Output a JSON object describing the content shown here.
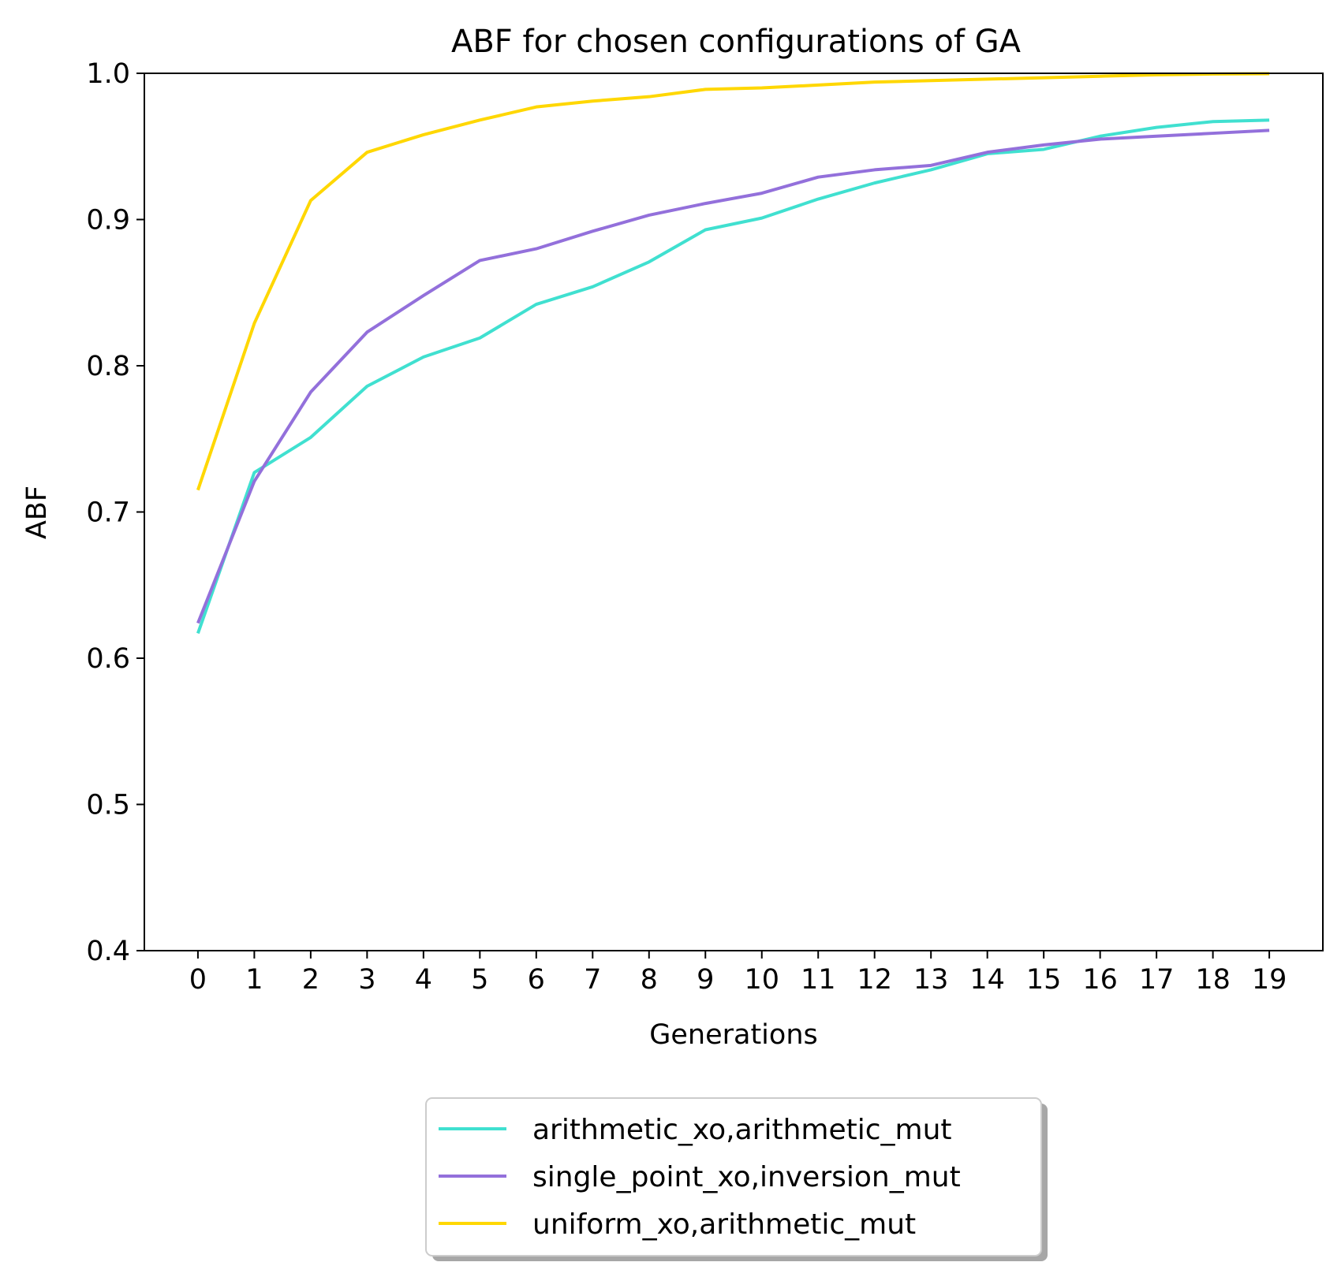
{
  "chart_data": {
    "type": "line",
    "title": "ABF for chosen configurations of GA",
    "xlabel": "Generations",
    "ylabel": "ABF",
    "xlim": [
      -0.95,
      19.95
    ],
    "ylim": [
      0.4,
      1.0
    ],
    "x": [
      0,
      1,
      2,
      3,
      4,
      5,
      6,
      7,
      8,
      9,
      10,
      11,
      12,
      13,
      14,
      15,
      16,
      17,
      18,
      19
    ],
    "x_ticks": [
      "0",
      "1",
      "2",
      "3",
      "4",
      "5",
      "6",
      "7",
      "8",
      "9",
      "10",
      "11",
      "12",
      "13",
      "14",
      "15",
      "16",
      "17",
      "18",
      "19"
    ],
    "y_ticks": [
      "0.4",
      "0.5",
      "0.6",
      "0.7",
      "0.8",
      "0.9",
      "1.0"
    ],
    "y_tick_values": [
      0.4,
      0.5,
      0.6,
      0.7,
      0.8,
      0.9,
      1.0
    ],
    "grid": false,
    "legend_position": "below-center",
    "series": [
      {
        "name": "arithmetic_xo,arithmetic_mut",
        "color": "#40E0D0",
        "values": [
          0.617,
          0.727,
          0.751,
          0.786,
          0.806,
          0.819,
          0.842,
          0.854,
          0.871,
          0.893,
          0.901,
          0.914,
          0.925,
          0.934,
          0.945,
          0.948,
          0.957,
          0.963,
          0.967,
          0.968
        ]
      },
      {
        "name": "single_point_xo,inversion_mut",
        "color": "#9370DB",
        "values": [
          0.624,
          0.721,
          0.782,
          0.823,
          0.848,
          0.872,
          0.88,
          0.892,
          0.903,
          0.911,
          0.918,
          0.929,
          0.934,
          0.937,
          0.946,
          0.951,
          0.955,
          0.957,
          0.959,
          0.961
        ]
      },
      {
        "name": "uniform_xo,arithmetic_mut",
        "color": "#FFD700",
        "values": [
          0.715,
          0.829,
          0.913,
          0.946,
          0.958,
          0.968,
          0.977,
          0.981,
          0.984,
          0.989,
          0.99,
          0.992,
          0.994,
          0.995,
          0.996,
          0.997,
          0.998,
          0.999,
          0.9995,
          0.9997
        ]
      }
    ]
  }
}
